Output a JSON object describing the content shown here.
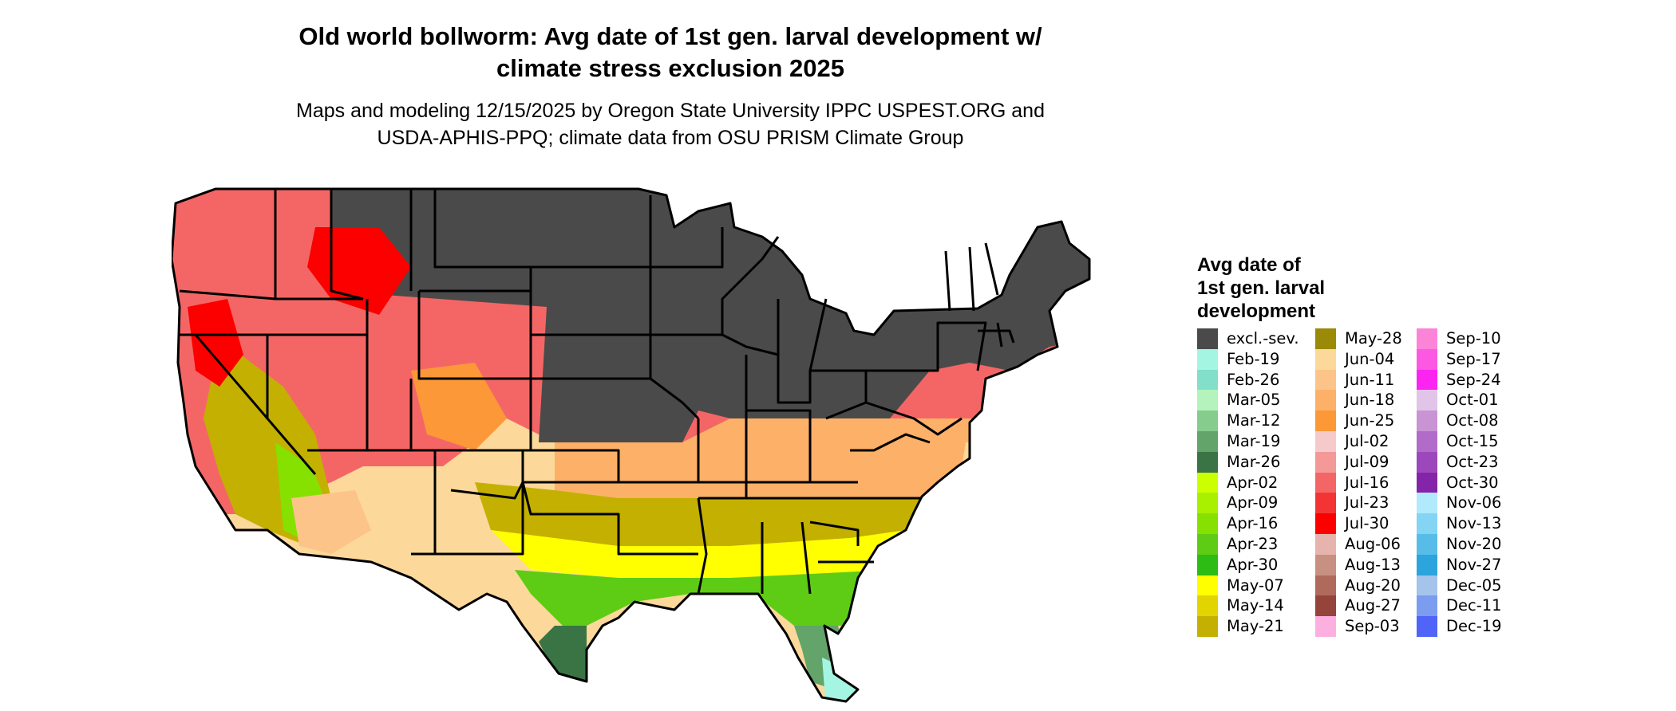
{
  "title_line1": "Old world bollworm: Avg date of 1st gen. larval development w/",
  "title_line2": "climate stress exclusion 2025",
  "subtitle_line1": "Maps and modeling 12/15/2025 by Oregon State University IPPC USPEST.ORG and",
  "subtitle_line2": "USDA-APHIS-PPQ; climate data from OSU PRISM Climate Group",
  "legend": {
    "title_line1": "Avg date of",
    "title_line2": "1st gen. larval",
    "title_line3": "development",
    "columns": [
      [
        {
          "label": "excl.-sev.",
          "color": "#4a4a4a"
        },
        {
          "label": "Feb-19",
          "color": "#a4f5e2"
        },
        {
          "label": "Feb-26",
          "color": "#82dfc9"
        },
        {
          "label": "Mar-05",
          "color": "#b4f4bc"
        },
        {
          "label": "Mar-12",
          "color": "#86cc8c"
        },
        {
          "label": "Mar-19",
          "color": "#62a46a"
        },
        {
          "label": "Mar-26",
          "color": "#3a7444"
        },
        {
          "label": "Apr-02",
          "color": "#ccff00"
        },
        {
          "label": "Apr-09",
          "color": "#a8f000"
        },
        {
          "label": "Apr-16",
          "color": "#86e000"
        },
        {
          "label": "Apr-23",
          "color": "#5ecc14"
        },
        {
          "label": "Apr-30",
          "color": "#2cbc14"
        },
        {
          "label": "May-07",
          "color": "#ffff00"
        },
        {
          "label": "May-14",
          "color": "#e2d400"
        },
        {
          "label": "May-21",
          "color": "#c4b000"
        }
      ],
      [
        {
          "label": "May-28",
          "color": "#9a8a08"
        },
        {
          "label": "Jun-04",
          "color": "#fcd89a"
        },
        {
          "label": "Jun-11",
          "color": "#fcc488"
        },
        {
          "label": "Jun-18",
          "color": "#fcb068"
        },
        {
          "label": "Jun-25",
          "color": "#fc9838"
        },
        {
          "label": "Jul-02",
          "color": "#f6caca"
        },
        {
          "label": "Jul-09",
          "color": "#f49898"
        },
        {
          "label": "Jul-16",
          "color": "#f46666"
        },
        {
          "label": "Jul-23",
          "color": "#f43434"
        },
        {
          "label": "Jul-30",
          "color": "#fc0000"
        },
        {
          "label": "Aug-06",
          "color": "#e6b4ac"
        },
        {
          "label": "Aug-13",
          "color": "#c89080"
        },
        {
          "label": "Aug-20",
          "color": "#b06a5c"
        },
        {
          "label": "Aug-27",
          "color": "#94443a"
        },
        {
          "label": "Sep-03",
          "color": "#fcb0e0"
        }
      ],
      [
        {
          "label": "Sep-10",
          "color": "#fc84d8"
        },
        {
          "label": "Sep-17",
          "color": "#fc58e4"
        },
        {
          "label": "Sep-24",
          "color": "#fc24f0"
        },
        {
          "label": "Oct-01",
          "color": "#e2c4e8"
        },
        {
          "label": "Oct-08",
          "color": "#c894d4"
        },
        {
          "label": "Oct-15",
          "color": "#b06cc8"
        },
        {
          "label": "Oct-23",
          "color": "#9c48bc"
        },
        {
          "label": "Oct-30",
          "color": "#8424a8"
        },
        {
          "label": "Nov-06",
          "color": "#b0eafc"
        },
        {
          "label": "Nov-13",
          "color": "#84d4f4"
        },
        {
          "label": "Nov-20",
          "color": "#58bce8"
        },
        {
          "label": "Nov-27",
          "color": "#2ca4dc"
        },
        {
          "label": "Dec-05",
          "color": "#a4c4ec"
        },
        {
          "label": "Dec-11",
          "color": "#7c9cf0"
        },
        {
          "label": "Dec-19",
          "color": "#5064f8"
        }
      ]
    ]
  }
}
